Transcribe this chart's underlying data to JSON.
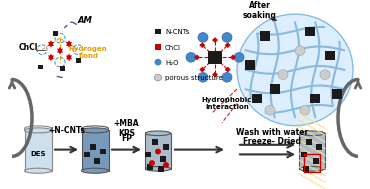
{
  "bg_color": "#ffffff",
  "title": "",
  "legend_items": [
    {
      "label": "N-CNTs",
      "color": "#1a1a1a",
      "marker": "s"
    },
    {
      "label": "ChCl",
      "color": "#cc0000",
      "marker": "s"
    },
    {
      "label": "H₂O",
      "color": "#4488cc",
      "marker": "o"
    },
    {
      "label": "porous structure",
      "color": "#cccccc",
      "marker": "o"
    }
  ],
  "text_AM": "AM",
  "text_ChCl": "ChCl",
  "text_Hbond": "Hydrogen\nbond",
  "text_DES": "DES",
  "text_step1": "+N-CNTs",
  "text_step2": "+MBA\nKPS",
  "text_FP": "FP",
  "text_step3": "Wash with water",
  "text_step4": "Freeze- Dried",
  "text_after": "After\nsoaking",
  "text_hydrophobic": "Hydrophobic\ninteraction",
  "beaker_color": "#aaccee",
  "beaker_edge": "#888888",
  "cnt_color": "#1a1a1a",
  "chcl_color": "#cc0000",
  "water_color": "#4488cc",
  "porous_color": "#cccccc",
  "network_color": "#88bbdd",
  "arrow_color": "#555555",
  "hbond_color": "#e8a000",
  "dashed_color": "#4488cc",
  "red_dashed": "#cc2222"
}
